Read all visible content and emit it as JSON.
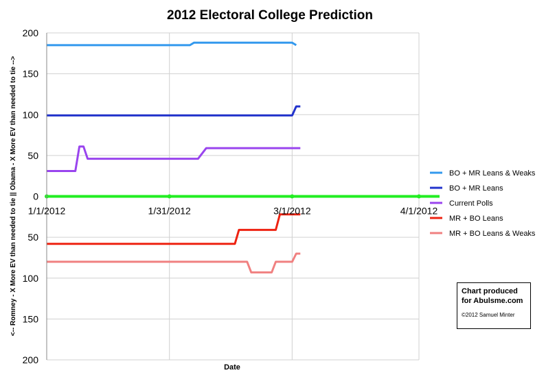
{
  "chart_data": {
    "type": "line",
    "title": "2012 Electoral College Prediction",
    "xlabel": "Date",
    "ylabel": "<-- Romney - X More EV than needed to tie  ||  Obama - X More EV than needed to tie -->",
    "x_range": [
      "1/1/2012",
      "4/1/2012"
    ],
    "x_ticks": [
      "1/1/2012",
      "1/31/2012",
      "3/1/2012",
      "4/1/2012"
    ],
    "ylim": [
      -200,
      200
    ],
    "y_ticks": [
      200,
      150,
      100,
      50,
      0,
      -50,
      -100,
      -150,
      -200
    ],
    "y_tick_labels": [
      "200",
      "150",
      "100",
      "50",
      "0",
      "50",
      "100",
      "150",
      "200"
    ],
    "grid": true,
    "legend_position": "right",
    "series": [
      {
        "name": "BO + MR Leans & Weaks",
        "color": "#3399ee",
        "points": [
          [
            "2012-01-01",
            185
          ],
          [
            "2012-02-05",
            185
          ],
          [
            "2012-02-06",
            188
          ],
          [
            "2012-03-01",
            188
          ],
          [
            "2012-03-02",
            185
          ]
        ]
      },
      {
        "name": "BO + MR Leans",
        "color": "#2233cc",
        "points": [
          [
            "2012-01-01",
            99
          ],
          [
            "2012-03-01",
            99
          ],
          [
            "2012-03-02",
            110
          ],
          [
            "2012-03-03",
            110
          ]
        ]
      },
      {
        "name": "Current Polls",
        "color": "#9944ee",
        "points": [
          [
            "2012-01-01",
            31
          ],
          [
            "2012-01-08",
            31
          ],
          [
            "2012-01-09",
            61
          ],
          [
            "2012-01-10",
            61
          ],
          [
            "2012-01-11",
            46
          ],
          [
            "2012-02-07",
            46
          ],
          [
            "2012-02-09",
            59
          ],
          [
            "2012-03-03",
            59
          ]
        ]
      },
      {
        "name": "MR + BO Leans",
        "color": "#ee2211",
        "points": [
          [
            "2012-01-01",
            -58
          ],
          [
            "2012-02-16",
            -58
          ],
          [
            "2012-02-17",
            -41
          ],
          [
            "2012-02-26",
            -41
          ],
          [
            "2012-02-27",
            -22
          ],
          [
            "2012-03-03",
            -22
          ]
        ]
      },
      {
        "name": "MR + BO Leans & Weaks",
        "color": "#f08080",
        "points": [
          [
            "2012-01-01",
            -80
          ],
          [
            "2012-02-19",
            -80
          ],
          [
            "2012-02-20",
            -93
          ],
          [
            "2012-02-25",
            -93
          ],
          [
            "2012-02-26",
            -80
          ],
          [
            "2012-03-01",
            -80
          ],
          [
            "2012-03-02",
            -70
          ],
          [
            "2012-03-03",
            -70
          ]
        ]
      }
    ],
    "baseline": {
      "value": 0,
      "color": "#22ee22"
    }
  },
  "credit": {
    "line1": "Chart produced",
    "line2": "for Abulsme.com",
    "line3": "©2012 Samuel Minter"
  }
}
